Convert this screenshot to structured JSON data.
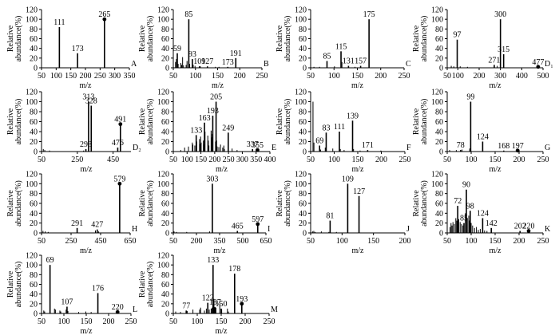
{
  "common": {
    "ylabel_line1": "Relative",
    "ylabel_line2": "abundance(%)",
    "xlabel": "m/z",
    "yticks": [
      0,
      20,
      40,
      60,
      80,
      100,
      120
    ]
  },
  "chart_data": [
    {
      "id": "A",
      "type": "bar",
      "letter": "A",
      "xlabel": "m/z",
      "xlim": [
        50,
        350
      ],
      "xticks": [
        50,
        100,
        150,
        200,
        250,
        300,
        350
      ],
      "ylim": [
        0,
        120
      ],
      "peaks": [
        {
          "x": 111,
          "y": 84,
          "label": "111"
        },
        {
          "x": 173,
          "y": 30,
          "label": "173"
        },
        {
          "x": 265,
          "y": 100,
          "label": "265",
          "marker": true
        }
      ],
      "noise": []
    },
    {
      "id": "B",
      "type": "bar",
      "letter": "B",
      "xlabel": "m/z",
      "xlim": [
        50,
        250
      ],
      "xticks": [
        50,
        100,
        150,
        200,
        250
      ],
      "ylim": [
        0,
        120
      ],
      "peaks": [
        {
          "x": 59,
          "y": 30,
          "label": "59"
        },
        {
          "x": 85,
          "y": 100,
          "label": "85"
        },
        {
          "x": 93,
          "y": 18,
          "label": "93"
        },
        {
          "x": 109,
          "y": 3,
          "label": "109"
        },
        {
          "x": 127,
          "y": 3,
          "label": "127"
        },
        {
          "x": 173,
          "y": 2,
          "label": "173"
        },
        {
          "x": 191,
          "y": 20,
          "label": "191"
        }
      ],
      "noise": [
        [
          55,
          12
        ],
        [
          57,
          18
        ],
        [
          61,
          8
        ],
        [
          67,
          10
        ],
        [
          69,
          6
        ],
        [
          71,
          22
        ],
        [
          73,
          5
        ],
        [
          79,
          6
        ],
        [
          81,
          14
        ],
        [
          87,
          8
        ],
        [
          95,
          6
        ],
        [
          99,
          4
        ],
        [
          111,
          3
        ],
        [
          145,
          2
        ],
        [
          153,
          2
        ]
      ]
    },
    {
      "id": "C",
      "type": "bar",
      "letter": "C",
      "xlabel": "m/z",
      "xlim": [
        50,
        250
      ],
      "xticks": [
        50,
        100,
        150,
        200,
        250
      ],
      "ylim": [
        0,
        120
      ],
      "peaks": [
        {
          "x": 85,
          "y": 14,
          "label": "85"
        },
        {
          "x": 115,
          "y": 34,
          "label": "115"
        },
        {
          "x": 131,
          "y": 4,
          "label": "131"
        },
        {
          "x": 157,
          "y": 4,
          "label": "157"
        },
        {
          "x": 175,
          "y": 100,
          "label": "175"
        }
      ],
      "noise": [
        [
          57,
          2
        ],
        [
          69,
          2
        ],
        [
          101,
          3
        ],
        [
          117,
          12
        ],
        [
          145,
          2
        ]
      ]
    },
    {
      "id": "D1",
      "type": "bar",
      "letter": "D₁",
      "xlabel": "m/z",
      "xlim": [
        50,
        500
      ],
      "xticks": [
        50,
        100,
        200,
        300,
        400,
        500
      ],
      "ylim": [
        0,
        120
      ],
      "peaks": [
        {
          "x": 97,
          "y": 58,
          "label": "97"
        },
        {
          "x": 271,
          "y": 6,
          "label": "271"
        },
        {
          "x": 300,
          "y": 100,
          "label": "300"
        },
        {
          "x": 315,
          "y": 28,
          "label": "315"
        },
        {
          "x": 477,
          "y": 2,
          "label": "477",
          "marker": true
        }
      ],
      "noise": [
        [
          69,
          4
        ],
        [
          81,
          3
        ],
        [
          111,
          3
        ],
        [
          145,
          2
        ],
        [
          285,
          4
        ]
      ]
    },
    {
      "id": "D2",
      "type": "bar",
      "letter": "D₂",
      "xlabel": "m/z",
      "xlim": [
        50,
        550
      ],
      "xticks": [
        50,
        250,
        450
      ],
      "ylim": [
        0,
        120
      ],
      "peaks": [
        {
          "x": 298,
          "y": 5,
          "label": "298"
        },
        {
          "x": 313,
          "y": 100,
          "label": "313"
        },
        {
          "x": 328,
          "y": 92,
          "label": "328"
        },
        {
          "x": 476,
          "y": 8,
          "label": "476"
        },
        {
          "x": 491,
          "y": 55,
          "label": "491",
          "marker": true
        }
      ],
      "noise": [
        [
          60,
          5
        ],
        [
          68,
          3
        ],
        [
          95,
          2
        ],
        [
          285,
          2
        ]
      ]
    },
    {
      "id": "E",
      "type": "bar",
      "letter": "E",
      "xlabel": "m/z",
      "xlim": [
        50,
        400
      ],
      "xticks": [
        50,
        100,
        150,
        200,
        250,
        300,
        350,
        400
      ],
      "ylim": [
        0,
        120
      ],
      "peaks": [
        {
          "x": 133,
          "y": 33,
          "label": "133"
        },
        {
          "x": 163,
          "y": 58,
          "label": "163"
        },
        {
          "x": 193,
          "y": 72,
          "label": "193"
        },
        {
          "x": 205,
          "y": 100,
          "label": "205"
        },
        {
          "x": 249,
          "y": 38,
          "label": "249"
        },
        {
          "x": 337,
          "y": 5,
          "label": "337"
        },
        {
          "x": 355,
          "y": 3,
          "label": "355",
          "marker": true
        }
      ],
      "noise": [
        [
          77,
          3
        ],
        [
          91,
          8
        ],
        [
          105,
          10
        ],
        [
          119,
          18
        ],
        [
          121,
          14
        ],
        [
          128,
          12
        ],
        [
          135,
          20
        ],
        [
          145,
          25
        ],
        [
          147,
          15
        ],
        [
          149,
          30
        ],
        [
          151,
          18
        ],
        [
          159,
          22
        ],
        [
          161,
          14
        ],
        [
          165,
          40
        ],
        [
          175,
          32
        ],
        [
          177,
          22
        ],
        [
          179,
          12
        ],
        [
          187,
          42
        ],
        [
          189,
          28
        ],
        [
          191,
          35
        ],
        [
          203,
          20
        ],
        [
          207,
          22
        ],
        [
          209,
          10
        ],
        [
          215,
          9
        ],
        [
          221,
          14
        ],
        [
          229,
          8
        ],
        [
          233,
          12
        ],
        [
          235,
          5
        ],
        [
          263,
          6
        ],
        [
          281,
          3
        ]
      ]
    },
    {
      "id": "F",
      "type": "bar",
      "letter": "F",
      "xlabel": "m/z",
      "xlim": [
        50,
        250
      ],
      "xticks": [
        50,
        100,
        150,
        200,
        250
      ],
      "ylim": [
        0,
        120
      ],
      "peaks": [
        {
          "x": 69,
          "y": 12,
          "label": "69"
        },
        {
          "x": 83,
          "y": 38,
          "label": "83"
        },
        {
          "x": 111,
          "y": 40,
          "label": "111"
        },
        {
          "x": 139,
          "y": 62,
          "label": "139"
        },
        {
          "x": 171,
          "y": 3,
          "label": "171"
        }
      ],
      "noise": [
        [
          55,
          100
        ],
        [
          57,
          18
        ],
        [
          71,
          4
        ],
        [
          81,
          8
        ],
        [
          97,
          6
        ],
        [
          113,
          5
        ],
        [
          121,
          3
        ],
        [
          141,
          5
        ],
        [
          155,
          2
        ],
        [
          199,
          2
        ]
      ]
    },
    {
      "id": "G",
      "type": "bar",
      "letter": "G",
      "xlabel": "m/z",
      "xlim": [
        50,
        250
      ],
      "xticks": [
        50,
        100,
        150,
        200,
        250
      ],
      "ylim": [
        0,
        120
      ],
      "peaks": [
        {
          "x": 78,
          "y": 3,
          "label": "78"
        },
        {
          "x": 99,
          "y": 100,
          "label": "99"
        },
        {
          "x": 124,
          "y": 20,
          "label": "124"
        },
        {
          "x": 168,
          "y": 2,
          "label": "168"
        },
        {
          "x": 197,
          "y": 2,
          "label": "197",
          "marker": true
        }
      ],
      "noise": [
        [
          55,
          3
        ],
        [
          69,
          3
        ],
        [
          81,
          4
        ],
        [
          97,
          6
        ]
      ]
    },
    {
      "id": "H",
      "type": "bar",
      "letter": "H",
      "xlabel": "m/z",
      "xlim": [
        50,
        650
      ],
      "xticks": [
        50,
        250,
        450,
        650
      ],
      "ylim": [
        0,
        120
      ],
      "peaks": [
        {
          "x": 291,
          "y": 10,
          "label": "291"
        },
        {
          "x": 427,
          "y": 7,
          "label": "427"
        },
        {
          "x": 579,
          "y": 100,
          "label": "579",
          "marker": true
        }
      ],
      "noise": [
        [
          60,
          4
        ],
        [
          75,
          3
        ],
        [
          95,
          2
        ],
        [
          415,
          5
        ],
        [
          437,
          3
        ]
      ]
    },
    {
      "id": "I",
      "type": "bar",
      "letter": "I",
      "xlabel": "m/z",
      "xlim": [
        50,
        650
      ],
      "xticks": [
        50,
        200,
        350,
        500,
        650
      ],
      "ylim": [
        0,
        120
      ],
      "peaks": [
        {
          "x": 303,
          "y": 100,
          "label": "303"
        },
        {
          "x": 465,
          "y": 4,
          "label": "465"
        },
        {
          "x": 597,
          "y": 18,
          "label": "597",
          "marker": true
        }
      ],
      "noise": [
        [
          55,
          3
        ],
        [
          70,
          2
        ],
        [
          137,
          2
        ],
        [
          285,
          3
        ]
      ]
    },
    {
      "id": "J",
      "type": "bar",
      "letter": "J",
      "xlabel": "m/z",
      "xlim": [
        50,
        200
      ],
      "xticks": [
        50,
        100,
        150,
        200
      ],
      "ylim": [
        0,
        120
      ],
      "peaks": [
        {
          "x": 81,
          "y": 25,
          "label": "81"
        },
        {
          "x": 109,
          "y": 100,
          "label": "109"
        },
        {
          "x": 127,
          "y": 75,
          "label": "127"
        }
      ],
      "noise": [
        [
          53,
          3
        ],
        [
          55,
          4
        ],
        [
          57,
          2
        ],
        [
          67,
          3
        ],
        [
          79,
          2
        ],
        [
          91,
          2
        ]
      ]
    },
    {
      "id": "K",
      "type": "bar",
      "letter": "K",
      "xlabel": "m/z",
      "xlim": [
        50,
        250
      ],
      "xticks": [
        50,
        100,
        150,
        200,
        250
      ],
      "ylim": [
        0,
        120
      ],
      "peaks": [
        {
          "x": 72,
          "y": 55,
          "label": "72"
        },
        {
          "x": 85,
          "y": 20,
          "label": "85"
        },
        {
          "x": 90,
          "y": 88,
          "label": "90"
        },
        {
          "x": 98,
          "y": 45,
          "label": "98"
        },
        {
          "x": 124,
          "y": 30,
          "label": "124"
        },
        {
          "x": 142,
          "y": 10,
          "label": "142"
        },
        {
          "x": 202,
          "y": 4,
          "label": "202"
        },
        {
          "x": 220,
          "y": 4,
          "label": "220",
          "marker": true
        }
      ],
      "noise": [
        [
          56,
          12
        ],
        [
          58,
          20
        ],
        [
          60,
          15
        ],
        [
          62,
          22
        ],
        [
          65,
          18
        ],
        [
          68,
          30
        ],
        [
          70,
          25
        ],
        [
          74,
          28
        ],
        [
          77,
          22
        ],
        [
          80,
          18
        ],
        [
          83,
          15
        ],
        [
          88,
          40
        ],
        [
          92,
          30
        ],
        [
          95,
          35
        ],
        [
          96,
          25
        ],
        [
          100,
          20
        ],
        [
          103,
          15
        ],
        [
          107,
          10
        ],
        [
          111,
          12
        ],
        [
          115,
          6
        ],
        [
          119,
          8
        ],
        [
          128,
          5
        ],
        [
          133,
          4
        ]
      ]
    },
    {
      "id": "L",
      "type": "bar",
      "letter": "L",
      "xlabel": "m/z",
      "xlim": [
        50,
        250
      ],
      "xticks": [
        50,
        100,
        150,
        200,
        250
      ],
      "ylim": [
        0,
        120
      ],
      "peaks": [
        {
          "x": 69,
          "y": 100,
          "label": "69"
        },
        {
          "x": 107,
          "y": 14,
          "label": "107"
        },
        {
          "x": 176,
          "y": 42,
          "label": "176"
        },
        {
          "x": 220,
          "y": 3,
          "label": "220",
          "marker": true
        }
      ],
      "noise": [
        [
          55,
          6
        ],
        [
          57,
          4
        ],
        [
          79,
          10
        ],
        [
          81,
          8
        ],
        [
          91,
          6
        ],
        [
          93,
          4
        ],
        [
          105,
          8
        ],
        [
          109,
          5
        ],
        [
          133,
          3
        ],
        [
          149,
          4
        ],
        [
          161,
          3
        ]
      ]
    },
    {
      "id": "M",
      "type": "bar",
      "letter": "M",
      "xlabel": "m/z",
      "xlim": [
        50,
        250
      ],
      "xticks": [
        50,
        100,
        150,
        200,
        250
      ],
      "ylim": [
        0,
        120
      ],
      "peaks": [
        {
          "x": 77,
          "y": 6,
          "label": "77"
        },
        {
          "x": 122,
          "y": 22,
          "label": "122"
        },
        {
          "x": 133,
          "y": 100,
          "label": "133"
        },
        {
          "x": 137,
          "y": 13,
          "label": "137"
        },
        {
          "x": 150,
          "y": 10,
          "label": "150"
        },
        {
          "x": 178,
          "y": 82,
          "label": "178"
        },
        {
          "x": 193,
          "y": 20,
          "label": "193",
          "marker": true
        }
      ],
      "noise": [
        [
          55,
          4
        ],
        [
          65,
          3
        ],
        [
          79,
          5
        ],
        [
          91,
          8
        ],
        [
          105,
          8
        ],
        [
          107,
          12
        ],
        [
          115,
          6
        ],
        [
          119,
          10
        ],
        [
          125,
          8
        ],
        [
          129,
          10
        ],
        [
          131,
          12
        ],
        [
          135,
          30
        ],
        [
          139,
          12
        ],
        [
          147,
          20
        ],
        [
          151,
          8
        ],
        [
          163,
          10
        ],
        [
          165,
          4
        ]
      ]
    }
  ]
}
